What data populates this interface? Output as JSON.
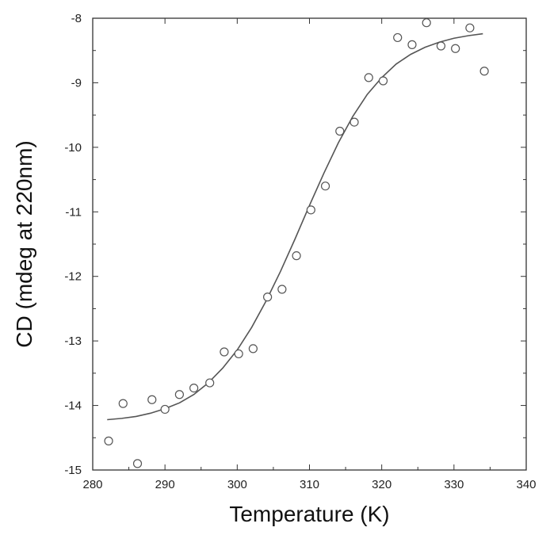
{
  "chart_data": {
    "type": "scatter",
    "xlabel": "Temperature (K)",
    "ylabel": "CD (mdeg at 220nm)",
    "xlim": [
      280,
      340
    ],
    "ylim": [
      -15,
      -8
    ],
    "x_ticks": [
      280,
      290,
      300,
      310,
      320,
      330,
      340
    ],
    "y_ticks": [
      -8,
      -9,
      -10,
      -11,
      -12,
      -13,
      -14,
      -15
    ],
    "grid": false,
    "colors": {
      "markers": "#555555",
      "fit_line": "#555555",
      "axes": "#333333"
    },
    "series": [
      {
        "type": "scatter",
        "marker": "open-circle",
        "points": [
          [
            282.2,
            -14.55
          ],
          [
            284.2,
            -13.97
          ],
          [
            286.2,
            -14.9
          ],
          [
            288.2,
            -13.91
          ],
          [
            290.0,
            -14.06
          ],
          [
            292.0,
            -13.83
          ],
          [
            294.0,
            -13.73
          ],
          [
            296.2,
            -13.65
          ],
          [
            298.2,
            -13.17
          ],
          [
            300.2,
            -13.2
          ],
          [
            302.2,
            -13.12
          ],
          [
            304.2,
            -12.32
          ],
          [
            306.2,
            -12.2
          ],
          [
            308.2,
            -11.68
          ],
          [
            310.2,
            -10.97
          ],
          [
            312.2,
            -10.6
          ],
          [
            314.2,
            -9.75
          ],
          [
            316.2,
            -9.61
          ],
          [
            318.2,
            -8.92
          ],
          [
            320.2,
            -8.97
          ],
          [
            322.2,
            -8.3
          ],
          [
            324.2,
            -8.41
          ],
          [
            326.2,
            -8.07
          ],
          [
            328.2,
            -8.43
          ],
          [
            330.2,
            -8.47
          ],
          [
            332.2,
            -8.15
          ],
          [
            334.2,
            -8.82
          ]
        ]
      },
      {
        "type": "line",
        "fit": "sigmoid",
        "x": [
          282,
          284,
          286,
          288,
          290,
          292,
          294,
          296,
          298,
          300,
          302,
          304,
          306,
          308,
          310,
          312,
          314,
          316,
          318,
          320,
          322,
          324,
          326,
          328,
          330,
          332,
          334
        ],
        "y": [
          -14.22,
          -14.2,
          -14.17,
          -14.12,
          -14.05,
          -13.96,
          -13.83,
          -13.65,
          -13.42,
          -13.14,
          -12.79,
          -12.38,
          -11.92,
          -11.42,
          -10.9,
          -10.4,
          -9.93,
          -9.52,
          -9.18,
          -8.92,
          -8.71,
          -8.56,
          -8.45,
          -8.37,
          -8.31,
          -8.27,
          -8.24
        ]
      }
    ]
  }
}
